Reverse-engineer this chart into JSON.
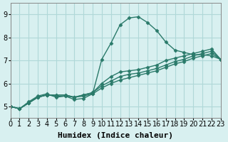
{
  "xlabel": "Humidex (Indice chaleur)",
  "background_color": "#d8f0f0",
  "grid_color": "#b0d8d8",
  "line_color": "#2a7a6a",
  "xlim": [
    0,
    23
  ],
  "ylim": [
    4.5,
    9.5
  ],
  "yticks": [
    5,
    6,
    7,
    8,
    9
  ],
  "xticks": [
    0,
    1,
    2,
    3,
    4,
    5,
    6,
    7,
    8,
    9,
    10,
    11,
    12,
    13,
    14,
    15,
    16,
    17,
    18,
    19,
    20,
    21,
    22,
    23
  ],
  "lines": [
    {
      "x": [
        0,
        1,
        2,
        3,
        4,
        5,
        6,
        7,
        8,
        9,
        10,
        11,
        12,
        13,
        14,
        15,
        16,
        17,
        18,
        19,
        20,
        21,
        22,
        23
      ],
      "y": [
        5.0,
        4.9,
        5.2,
        5.45,
        5.55,
        5.4,
        5.45,
        5.3,
        5.35,
        5.55,
        7.05,
        7.75,
        8.55,
        8.85,
        8.9,
        8.65,
        8.3,
        7.8,
        7.45,
        7.35,
        7.25,
        7.25,
        7.2,
        7.05
      ]
    },
    {
      "x": [
        0,
        1,
        2,
        3,
        4,
        5,
        6,
        7,
        8,
        9,
        10,
        11,
        12,
        13,
        14,
        15,
        16,
        17,
        18,
        19,
        20,
        21,
        22,
        23
      ],
      "y": [
        5.0,
        4.9,
        5.15,
        5.4,
        5.5,
        5.5,
        5.5,
        5.4,
        5.5,
        5.6,
        6.0,
        6.3,
        6.5,
        6.55,
        6.6,
        6.7,
        6.8,
        7.0,
        7.1,
        7.2,
        7.3,
        7.4,
        7.5,
        7.05
      ]
    },
    {
      "x": [
        0,
        1,
        2,
        3,
        4,
        5,
        6,
        7,
        8,
        9,
        10,
        11,
        12,
        13,
        14,
        15,
        16,
        17,
        18,
        19,
        20,
        21,
        22,
        23
      ],
      "y": [
        5.0,
        4.9,
        5.15,
        5.4,
        5.5,
        5.45,
        5.45,
        5.4,
        5.5,
        5.6,
        5.9,
        6.1,
        6.3,
        6.4,
        6.45,
        6.55,
        6.65,
        6.8,
        6.95,
        7.05,
        7.2,
        7.3,
        7.4,
        7.05
      ]
    },
    {
      "x": [
        0,
        1,
        2,
        3,
        4,
        5,
        6,
        7,
        8,
        9,
        10,
        11,
        12,
        13,
        14,
        15,
        16,
        17,
        18,
        19,
        20,
        21,
        22,
        23
      ],
      "y": [
        5.0,
        4.9,
        5.15,
        5.4,
        5.5,
        5.5,
        5.5,
        5.4,
        5.45,
        5.55,
        5.8,
        6.0,
        6.15,
        6.25,
        6.35,
        6.45,
        6.55,
        6.7,
        6.85,
        6.95,
        7.1,
        7.2,
        7.3,
        7.05
      ]
    }
  ],
  "marker": "D",
  "markersize": 2.5,
  "linewidth": 1.0,
  "xlabel_fontsize": 8,
  "tick_fontsize": 7
}
